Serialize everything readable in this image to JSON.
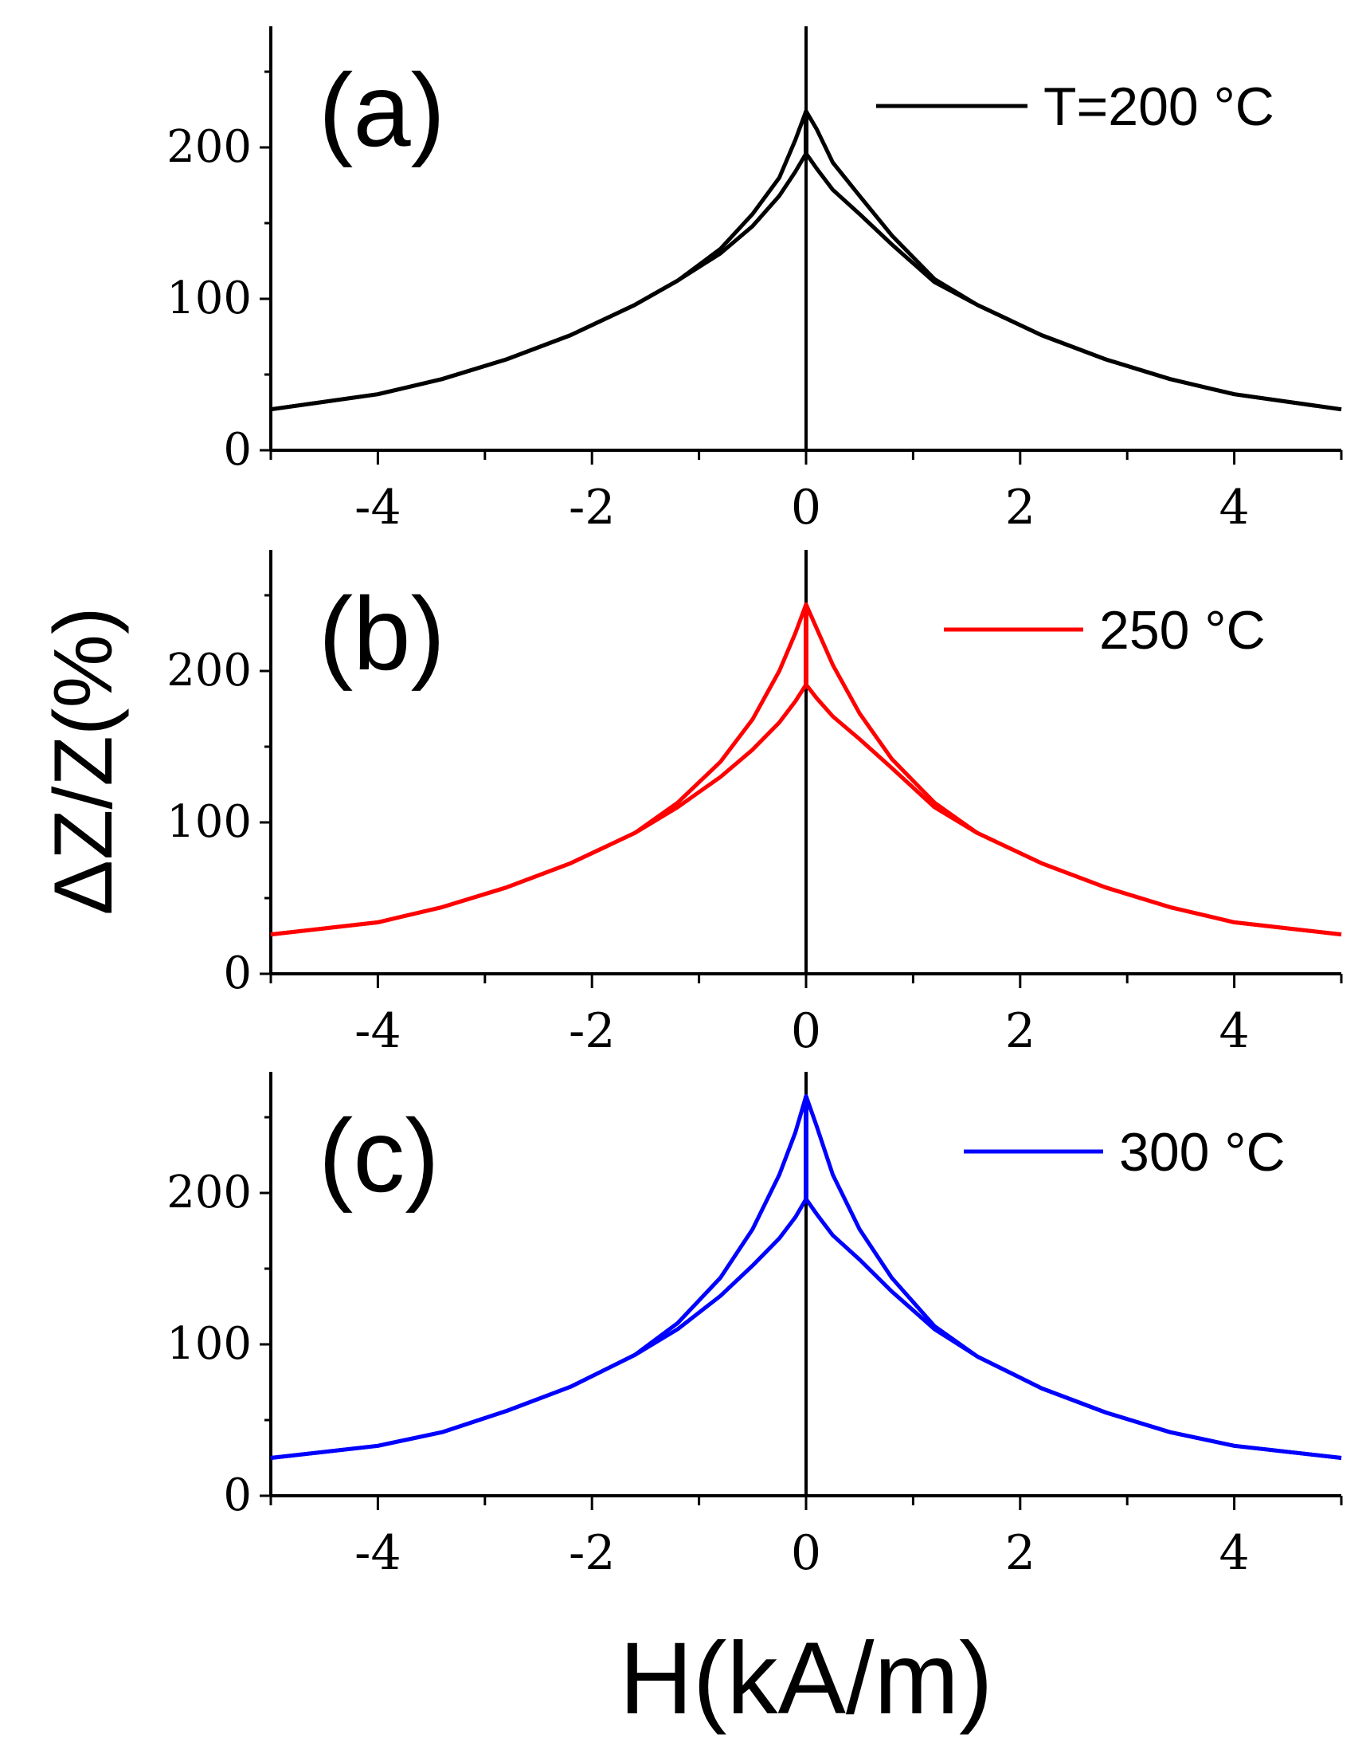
{
  "figure": {
    "y_axis_label": "ΔZ/Z(%)",
    "x_axis_label": "H(kA/m)"
  },
  "chart_data": [
    {
      "type": "line",
      "panel_label": "(a)",
      "legend_label": "T=200 °C",
      "color": "#000000",
      "xlim": [
        -5,
        5
      ],
      "ylim": [
        0,
        280
      ],
      "x_ticks": [
        -4,
        -2,
        0,
        2,
        4
      ],
      "x_tick_labels": [
        "-4",
        "-2",
        "0",
        "2",
        "4"
      ],
      "y_ticks": [
        0,
        100,
        200
      ],
      "y_tick_labels": [
        "0",
        "100",
        "200"
      ],
      "xlabel": "H(kA/m)",
      "ylabel": "ΔZ/Z(%)",
      "series": [
        {
          "name": "upper branch",
          "x": [
            -5,
            -4,
            -3.4,
            -2.8,
            -2.2,
            -1.6,
            -1.2,
            -0.8,
            -0.5,
            -0.25,
            -0.1,
            0,
            0.1,
            0.25,
            0.5,
            0.8,
            1.2,
            1.6,
            2.2,
            2.8,
            3.4,
            4,
            5
          ],
          "y": [
            27,
            37,
            47,
            60,
            76,
            96,
            112,
            133,
            156,
            180,
            205,
            224,
            212,
            190,
            168,
            142,
            113,
            96,
            76,
            60,
            47,
            37,
            27
          ]
        },
        {
          "name": "lower branch",
          "x": [
            -5,
            -4,
            -3.4,
            -2.8,
            -2.2,
            -1.6,
            -1.2,
            -0.8,
            -0.5,
            -0.25,
            -0.1,
            0,
            0.1,
            0.25,
            0.5,
            0.8,
            1.2,
            1.6,
            2.2,
            2.8,
            3.4,
            4,
            5
          ],
          "y": [
            27,
            37,
            47,
            60,
            76,
            96,
            112,
            130,
            148,
            168,
            184,
            196,
            186,
            172,
            156,
            136,
            111,
            96,
            76,
            60,
            47,
            37,
            27
          ]
        }
      ]
    },
    {
      "type": "line",
      "panel_label": "(b)",
      "legend_label": "250 °C",
      "color": "#ff0000",
      "xlim": [
        -5,
        5
      ],
      "ylim": [
        0,
        280
      ],
      "x_ticks": [
        -4,
        -2,
        0,
        2,
        4
      ],
      "x_tick_labels": [
        "-4",
        "-2",
        "0",
        "2",
        "4"
      ],
      "y_ticks": [
        0,
        100,
        200
      ],
      "y_tick_labels": [
        "0",
        "100",
        "200"
      ],
      "xlabel": "H(kA/m)",
      "ylabel": "ΔZ/Z(%)",
      "series": [
        {
          "name": "upper branch",
          "x": [
            -5,
            -4,
            -3.4,
            -2.8,
            -2.2,
            -1.6,
            -1.2,
            -0.8,
            -0.5,
            -0.25,
            -0.1,
            0,
            0.1,
            0.25,
            0.5,
            0.8,
            1.2,
            1.6,
            2.2,
            2.8,
            3.4,
            4,
            5
          ],
          "y": [
            26,
            34,
            44,
            57,
            73,
            93,
            113,
            140,
            168,
            200,
            225,
            244,
            228,
            204,
            172,
            142,
            113,
            93,
            73,
            57,
            44,
            34,
            26
          ]
        },
        {
          "name": "lower branch",
          "x": [
            -5,
            -4,
            -3.4,
            -2.8,
            -2.2,
            -1.6,
            -1.2,
            -0.8,
            -0.5,
            -0.25,
            -0.1,
            0,
            0.1,
            0.25,
            0.5,
            0.8,
            1.2,
            1.6,
            2.2,
            2.8,
            3.4,
            4,
            5
          ],
          "y": [
            26,
            34,
            44,
            57,
            73,
            93,
            110,
            130,
            148,
            166,
            180,
            191,
            182,
            170,
            155,
            136,
            110,
            93,
            73,
            57,
            44,
            34,
            26
          ]
        }
      ]
    },
    {
      "type": "line",
      "panel_label": "(c)",
      "legend_label": "300 °C",
      "color": "#0000ff",
      "xlim": [
        -5,
        5
      ],
      "ylim": [
        0,
        280
      ],
      "x_ticks": [
        -4,
        -2,
        0,
        2,
        4
      ],
      "x_tick_labels": [
        "-4",
        "-2",
        "0",
        "2",
        "4"
      ],
      "y_ticks": [
        0,
        100,
        200
      ],
      "y_tick_labels": [
        "0",
        "100",
        "200"
      ],
      "xlabel": "H(kA/m)",
      "ylabel": "ΔZ/Z(%)",
      "series": [
        {
          "name": "upper branch",
          "x": [
            -5,
            -4,
            -3.4,
            -2.8,
            -2.2,
            -1.6,
            -1.2,
            -0.8,
            -0.5,
            -0.25,
            -0.1,
            0,
            0.1,
            0.25,
            0.5,
            0.8,
            1.2,
            1.6,
            2.2,
            2.8,
            3.4,
            4,
            5
          ],
          "y": [
            25,
            33,
            42,
            56,
            72,
            93,
            114,
            144,
            176,
            212,
            240,
            264,
            244,
            212,
            176,
            144,
            112,
            92,
            71,
            55,
            42,
            33,
            25
          ]
        },
        {
          "name": "lower branch",
          "x": [
            -5,
            -4,
            -3.4,
            -2.8,
            -2.2,
            -1.6,
            -1.2,
            -0.8,
            -0.5,
            -0.25,
            -0.1,
            0,
            0.1,
            0.25,
            0.5,
            0.8,
            1.2,
            1.6,
            2.2,
            2.8,
            3.4,
            4,
            5
          ],
          "y": [
            25,
            33,
            42,
            56,
            72,
            93,
            110,
            132,
            152,
            170,
            184,
            196,
            186,
            172,
            156,
            135,
            110,
            92,
            71,
            55,
            42,
            33,
            25
          ]
        }
      ]
    }
  ]
}
